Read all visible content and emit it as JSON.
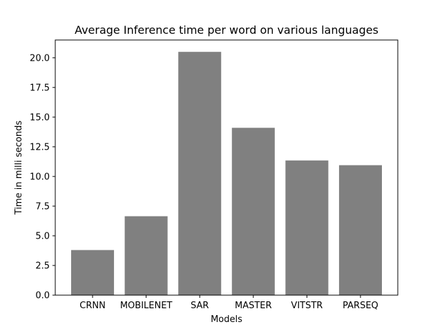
{
  "chart_data": {
    "type": "bar",
    "title": "Average Inference time per word on various languages",
    "xlabel": "Models",
    "ylabel": "Time in milli seconds",
    "categories": [
      "CRNN",
      "MOBILENET",
      "SAR",
      "MASTER",
      "VITSTR",
      "PARSEQ"
    ],
    "values": [
      3.8,
      6.65,
      20.5,
      14.1,
      11.35,
      10.95
    ],
    "ylim": [
      0,
      21.5
    ],
    "yticks": [
      0.0,
      2.5,
      5.0,
      7.5,
      10.0,
      12.5,
      15.0,
      17.5,
      20.0
    ],
    "ytick_labels": [
      "0.0",
      "2.5",
      "5.0",
      "7.5",
      "10.0",
      "12.5",
      "15.0",
      "17.5",
      "20.0"
    ],
    "bar_color": "#808080",
    "grid": false,
    "legend": "none"
  }
}
